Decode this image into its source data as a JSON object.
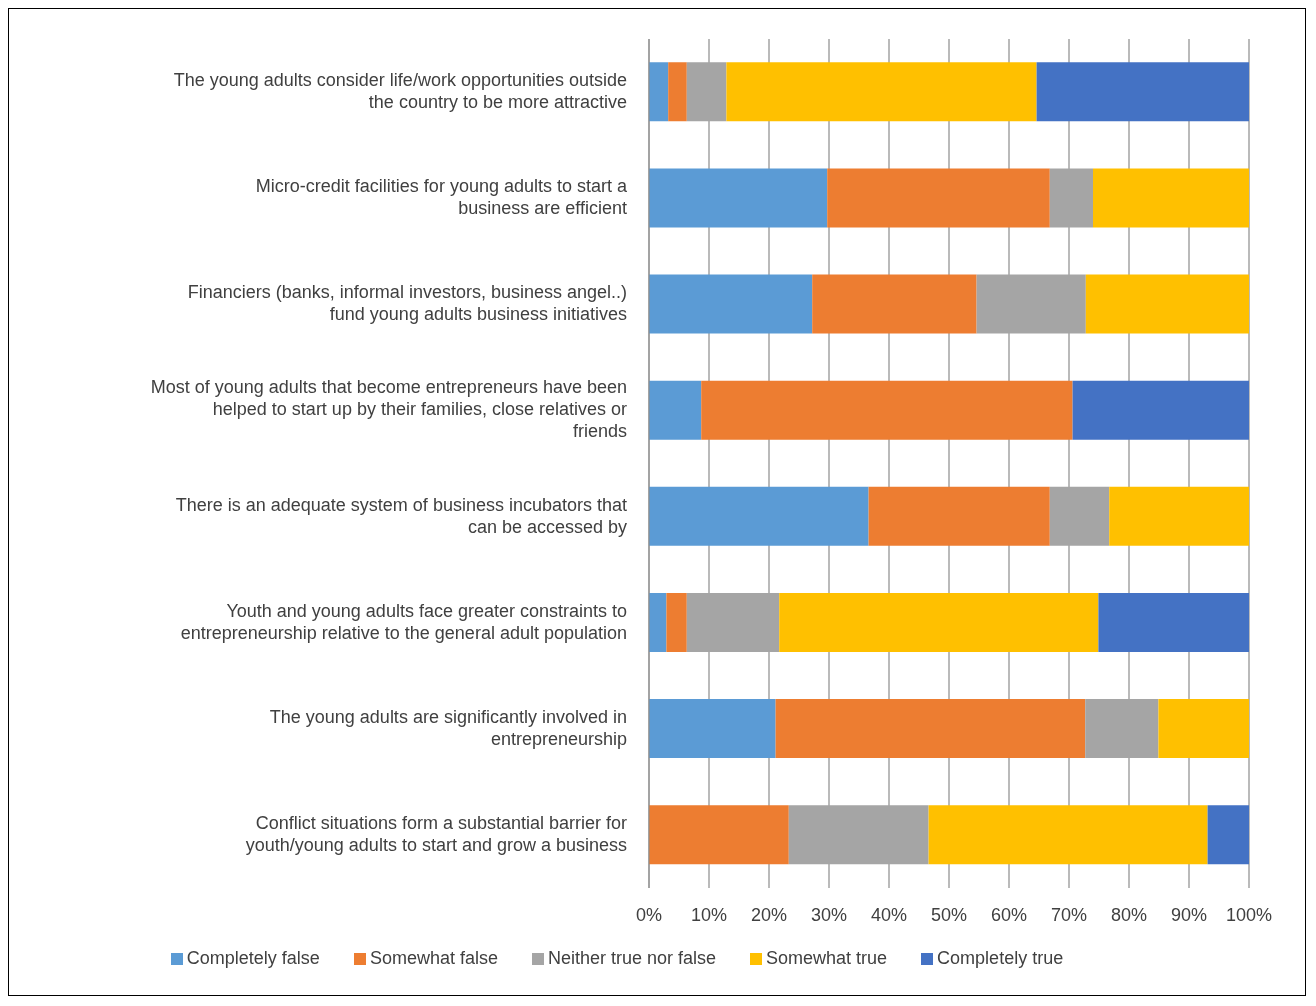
{
  "chart_data": {
    "type": "bar",
    "orientation": "horizontal",
    "stacked": true,
    "categories": [
      "The young adults consider life/work opportunities outside the country to be more attractive",
      "Micro-credit facilities for young adults to start a business are efficient",
      "Financiers (banks, informal investors, business angel..) fund young adults business initiatives",
      "Most of young adults that become entrepreneurs have been helped to start up by their families, close relatives or friends",
      "There is an adequate system of business incubators that can be accessed by",
      "Youth and young adults face greater constraints to entrepreneurship relative to the general adult population",
      "The young adults are significantly involved in entrepreneurship",
      "Conflict situations form a substantial barrier for youth/young adults to start and grow a business"
    ],
    "series": [
      {
        "name": "Completely false",
        "color": "#5b9bd5",
        "values": [
          3.2,
          29.7,
          27.2,
          8.7,
          36.6,
          2.9,
          21.1,
          0
        ]
      },
      {
        "name": "Somewhat false",
        "color": "#ed7d31",
        "values": [
          3.1,
          37.1,
          27.4,
          61.9,
          30.2,
          3.4,
          51.6,
          23.3
        ]
      },
      {
        "name": "Neither true nor false",
        "color": "#a5a5a5",
        "values": [
          6.6,
          7.2,
          18.2,
          0,
          9.9,
          15.4,
          12.2,
          23.3
        ]
      },
      {
        "name": "Somewhat true",
        "color": "#ffc000",
        "values": [
          51.7,
          26.0,
          27.2,
          0,
          23.3,
          53.2,
          15.1,
          46.5
        ]
      },
      {
        "name": "Completely true",
        "color": "#4472c4",
        "values": [
          35.4,
          0,
          0,
          29.4,
          0,
          25.1,
          0,
          6.9
        ]
      }
    ],
    "xlim": [
      0,
      100
    ],
    "xticks": [
      {
        "value": 0,
        "label": "0%"
      },
      {
        "value": 10,
        "label": "10%"
      },
      {
        "value": 20,
        "label": "20%"
      },
      {
        "value": 30,
        "label": "30%"
      },
      {
        "value": 40,
        "label": "40%"
      },
      {
        "value": 50,
        "label": "50%"
      },
      {
        "value": 60,
        "label": "60%"
      },
      {
        "value": 70,
        "label": "70%"
      },
      {
        "value": 80,
        "label": "80%"
      },
      {
        "value": 90,
        "label": "90%"
      },
      {
        "value": 100,
        "label": "100%"
      }
    ],
    "grid": "x",
    "legend": "bottom"
  }
}
